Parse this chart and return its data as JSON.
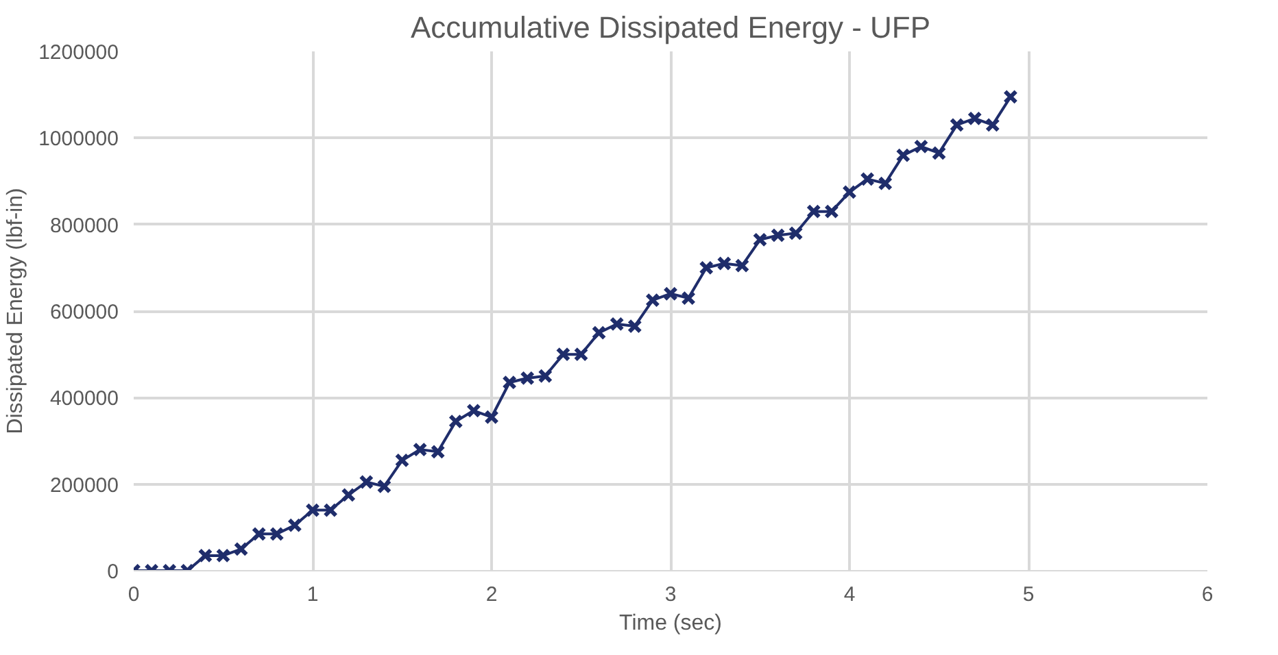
{
  "chart_data": {
    "type": "line",
    "title": "Accumulative Dissipated Energy - UFP",
    "xlabel": "Time (sec)",
    "ylabel": "Dissipated Energy (lbf-in)",
    "x": [
      0,
      0.1,
      0.2,
      0.3,
      0.4,
      0.5,
      0.6,
      0.7,
      0.8,
      0.9,
      1.0,
      1.1,
      1.2,
      1.3,
      1.4,
      1.5,
      1.6,
      1.7,
      1.8,
      1.9,
      2.0,
      2.1,
      2.2,
      2.3,
      2.4,
      2.5,
      2.6,
      2.7,
      2.8,
      2.9,
      3.0,
      3.1,
      3.2,
      3.3,
      3.4,
      3.5,
      3.6,
      3.7,
      3.8,
      3.9,
      4.0,
      4.1,
      4.2,
      4.3,
      4.4,
      4.5,
      4.6,
      4.7,
      4.8,
      4.9
    ],
    "series": [
      {
        "color": "#1f2d6b",
        "values": [
          0,
          0,
          0,
          0,
          35000,
          35000,
          50000,
          85000,
          85000,
          105000,
          140000,
          140000,
          175000,
          205000,
          195000,
          255000,
          280000,
          275000,
          345000,
          370000,
          355000,
          435000,
          445000,
          450000,
          500000,
          500000,
          550000,
          570000,
          565000,
          625000,
          640000,
          630000,
          700000,
          710000,
          705000,
          765000,
          775000,
          780000,
          830000,
          830000,
          875000,
          905000,
          895000,
          960000,
          980000,
          965000,
          1030000,
          1045000,
          1030000,
          1095000
        ]
      }
    ],
    "xlim": [
      0,
      6
    ],
    "xticks": [
      0,
      1,
      2,
      3,
      4,
      5,
      6
    ],
    "ylim": [
      0,
      1200000
    ],
    "yticks": [
      0,
      200000,
      400000,
      600000,
      800000,
      1000000,
      1200000
    ],
    "grid": true,
    "marker": "cross",
    "line_style": "solid"
  }
}
